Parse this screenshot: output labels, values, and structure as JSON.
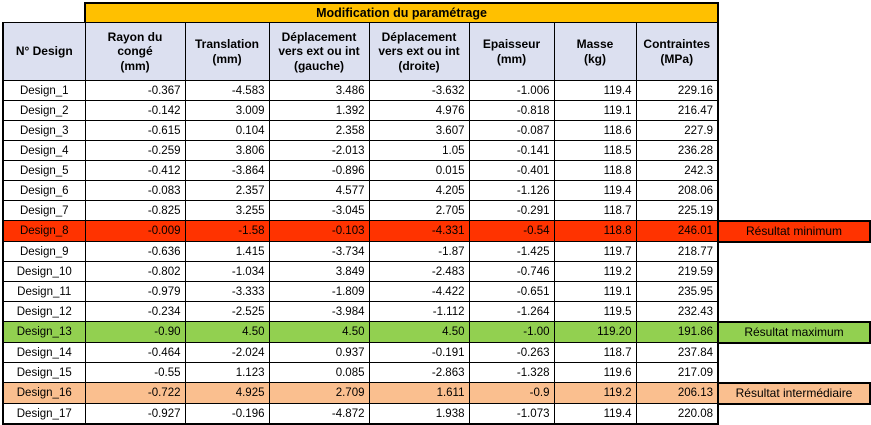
{
  "title": "Modification du paramétrage",
  "columns": [
    {
      "label": "N° Design"
    },
    {
      "label": "Rayon du\ncongé\n(mm)"
    },
    {
      "label": "Translation\n(mm)"
    },
    {
      "label": "Déplacement\nvers ext ou int\n(gauche)"
    },
    {
      "label": "Déplacement\nvers ext ou int\n(droite)"
    },
    {
      "label": "Epaisseur\n(mm)"
    },
    {
      "label": "Masse\n(kg)"
    },
    {
      "label": "Contraintes\n(MPa)"
    }
  ],
  "rows": [
    {
      "design": "Design_1",
      "values": [
        "-0.367",
        "-4.583",
        "3.486",
        "-3.632",
        "-1.006",
        "119.4",
        "229.16"
      ],
      "highlight": null
    },
    {
      "design": "Design_2",
      "values": [
        "-0.142",
        "3.009",
        "1.392",
        "4.976",
        "-0.818",
        "119.1",
        "216.47"
      ],
      "highlight": null
    },
    {
      "design": "Design_3",
      "values": [
        "-0.615",
        "0.104",
        "2.358",
        "3.607",
        "-0.087",
        "118.6",
        "227.9"
      ],
      "highlight": null
    },
    {
      "design": "Design_4",
      "values": [
        "-0.259",
        "3.806",
        "-2.013",
        "1.05",
        "-0.141",
        "118.5",
        "236.28"
      ],
      "highlight": null
    },
    {
      "design": "Design_5",
      "values": [
        "-0.412",
        "-3.864",
        "-0.896",
        "0.015",
        "-0.401",
        "118.8",
        "242.3"
      ],
      "highlight": null
    },
    {
      "design": "Design_6",
      "values": [
        "-0.083",
        "2.357",
        "4.577",
        "4.205",
        "-1.126",
        "119.4",
        "208.06"
      ],
      "highlight": null
    },
    {
      "design": "Design_7",
      "values": [
        "-0.825",
        "3.255",
        "-3.045",
        "2.705",
        "-0.291",
        "118.7",
        "225.19"
      ],
      "highlight": null
    },
    {
      "design": "Design_8",
      "values": [
        "-0.009",
        "-1.58",
        "-0.103",
        "-4.331",
        "-0.54",
        "118.8",
        "246.01"
      ],
      "highlight": "min"
    },
    {
      "design": "Design_9",
      "values": [
        "-0.636",
        "1.415",
        "-3.734",
        "-1.87",
        "-1.425",
        "119.7",
        "218.77"
      ],
      "highlight": null
    },
    {
      "design": "Design_10",
      "values": [
        "-0.802",
        "-1.034",
        "3.849",
        "-2.483",
        "-0.746",
        "119.2",
        "219.59"
      ],
      "highlight": null
    },
    {
      "design": "Design_11",
      "values": [
        "-0.979",
        "-3.333",
        "-1.809",
        "-4.422",
        "-0.651",
        "119.1",
        "235.95"
      ],
      "highlight": null
    },
    {
      "design": "Design_12",
      "values": [
        "-0.234",
        "-2.525",
        "-3.984",
        "-1.112",
        "-1.264",
        "119.5",
        "232.43"
      ],
      "highlight": null
    },
    {
      "design": "Design_13",
      "values": [
        "-0.90",
        "4.50",
        "4.50",
        "4.50",
        "-1.00",
        "119.20",
        "191.86"
      ],
      "highlight": "max"
    },
    {
      "design": "Design_14",
      "values": [
        "-0.464",
        "-2.024",
        "0.937",
        "-0.191",
        "-0.263",
        "118.7",
        "237.84"
      ],
      "highlight": null
    },
    {
      "design": "Design_15",
      "values": [
        "-0.55",
        "1.123",
        "0.085",
        "-2.863",
        "-1.328",
        "119.6",
        "217.09"
      ],
      "highlight": null
    },
    {
      "design": "Design_16",
      "values": [
        "-0.722",
        "4.925",
        "2.709",
        "1.611",
        "-0.9",
        "119.2",
        "206.13"
      ],
      "highlight": "mid"
    },
    {
      "design": "Design_17",
      "values": [
        "-0.927",
        "-0.196",
        "-4.872",
        "1.938",
        "-1.073",
        "119.4",
        "220.08"
      ],
      "highlight": null
    }
  ],
  "annotations": {
    "min": "Résultat minimum",
    "max": "Résultat maximum",
    "mid": "Résultat intermédiaire"
  },
  "colors": {
    "title_bg": "#FFC000",
    "header_bg": "#DCE0F0",
    "min": "#FF3300",
    "max": "#92D050",
    "mid": "#FABF8F"
  }
}
